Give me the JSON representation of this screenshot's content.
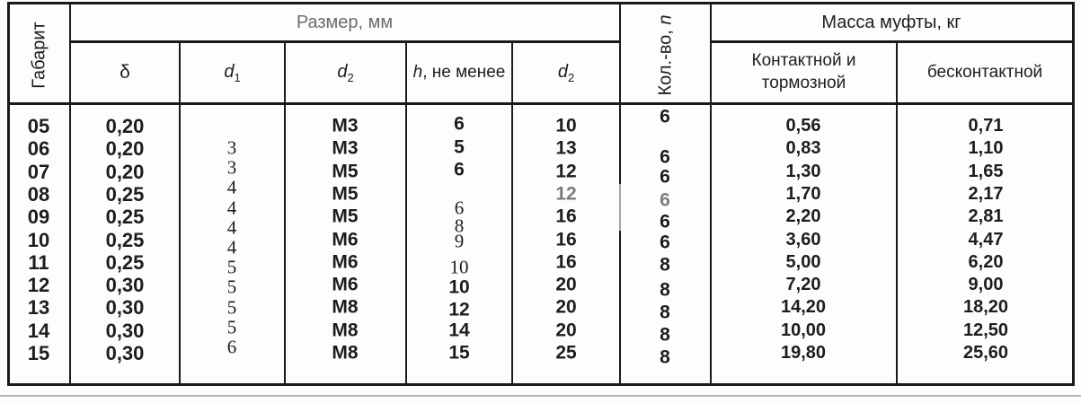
{
  "header": {
    "gabarit": "Габарит",
    "razmer": "Размер, мм",
    "delta": "δ",
    "d_base": "d",
    "d1_sub": "1",
    "d2_sub": "2",
    "h_italic": "h",
    "h_rest": ", не менее",
    "kolvo_prefix": "Кол.-во, ",
    "kolvo_n": "n",
    "massa": "Масса муфты, кг",
    "contact": "Контактной и тормозной",
    "contactless": "бесконтактной"
  },
  "columns": {
    "gabarit": [
      "05",
      "06",
      "07",
      "08",
      "09",
      "10",
      "11",
      "12",
      "13",
      "14",
      "15"
    ],
    "delta": [
      "0,20",
      "0,20",
      "0,20",
      "0,25",
      "0,25",
      "0,25",
      "0,25",
      "0,30",
      "0,30",
      "0,30",
      "0,30"
    ],
    "d1": [
      "3",
      "3",
      "4",
      "4",
      "4",
      "4",
      "5",
      "5",
      "5",
      "5",
      "6"
    ],
    "d2a": [
      "M3",
      "M3",
      "M5",
      "M5",
      "M5",
      "M6",
      "M6",
      "M6",
      "M8",
      "M8",
      "M8"
    ],
    "h": [
      "6",
      "5",
      "6",
      "6",
      "8",
      "9",
      "10",
      "10",
      "12",
      "14",
      "15"
    ],
    "d2b": [
      "10",
      "13",
      "12",
      "12",
      "16",
      "16",
      "16",
      "20",
      "20",
      "20",
      "25"
    ],
    "n": [
      "6",
      "6",
      "6",
      "6",
      "6",
      "6",
      "8",
      "8",
      "8",
      "8",
      "8"
    ],
    "mass_contact": [
      "0,56",
      "0,83",
      "1,30",
      "1,70",
      "2,20",
      "3,60",
      "5,00",
      "7,20",
      "14,20",
      "10,00",
      "19,80"
    ],
    "mass_contactless": [
      "0,71",
      "1,10",
      "1,65",
      "2,17",
      "2,81",
      "4,47",
      "6,20",
      "9,00",
      "18,20",
      "12,50",
      "25,60"
    ]
  },
  "colors": {
    "border": "#1a1a1a",
    "text": "#1d1d1d",
    "razmer_gray": "#6c6c6c",
    "faded_value": "#7b7b7b",
    "bottom_rule": "#b5b5b5"
  }
}
